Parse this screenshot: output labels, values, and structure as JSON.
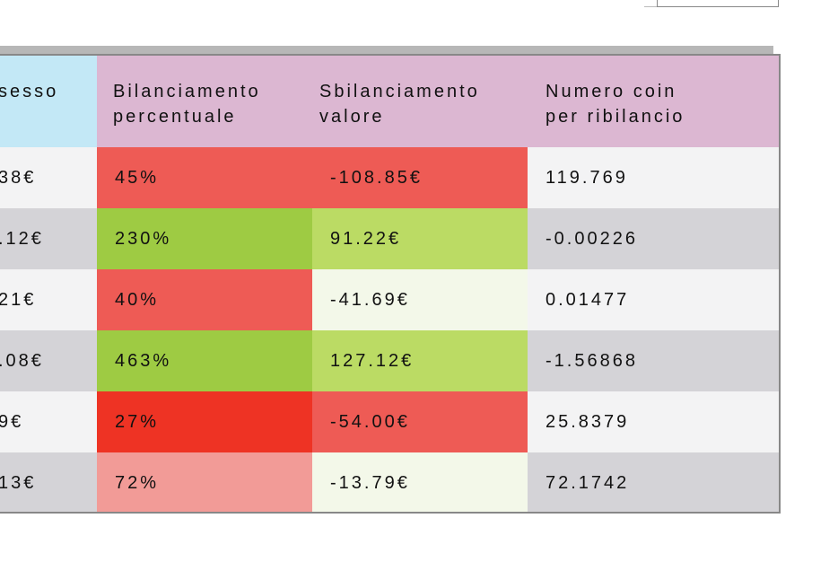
{
  "header": {
    "col0": "sesso",
    "col1": "Bilanciamento\npercentuale",
    "col2": "Sbilanciamento\nvalore",
    "col3": "Numero coin\nper ribilancio"
  },
  "colors": {
    "header_blue": "#c3e8f6",
    "header_pink": "#dcb7d2",
    "row_light": "#f3f3f4",
    "row_dark": "#d4d3d7",
    "red": "#ee5b55",
    "red_strong": "#ee3324",
    "pink": "#f29b97",
    "green": "#9ecb43",
    "light_green": "#bbdb64",
    "pale_green": "#f3f8e9"
  },
  "rows": [
    {
      "c0": "38€",
      "c1": "45%",
      "c2": "-108.85€",
      "c3": "119.769",
      "c1_color": "red",
      "c2_color": "red"
    },
    {
      "c0": ".12€",
      "c1": "230%",
      "c2": "91.22€",
      "c3": "-0.00226",
      "c1_color": "green",
      "c2_color": "light_green"
    },
    {
      "c0": "21€",
      "c1": "40%",
      "c2": "-41.69€",
      "c3": "0.01477",
      "c1_color": "red",
      "c2_color": "pale_green"
    },
    {
      "c0": ".08€",
      "c1": "463%",
      "c2": "127.12€",
      "c3": "-1.56868",
      "c1_color": "green",
      "c2_color": "light_green"
    },
    {
      "c0": "9€",
      "c1": "27%",
      "c2": "-54.00€",
      "c3": "25.8379",
      "c1_color": "red_strong",
      "c2_color": "red"
    },
    {
      "c0": "13€",
      "c1": "72%",
      "c2": "-13.79€",
      "c3": "72.1742",
      "c1_color": "pink",
      "c2_color": "pale_green"
    }
  ]
}
